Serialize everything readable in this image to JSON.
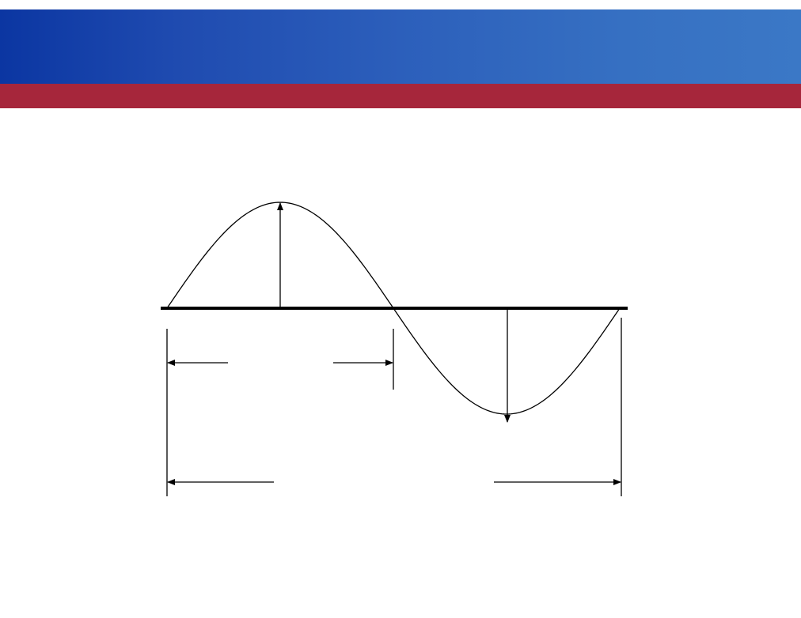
{
  "slide": {
    "header_color_start": "#0b36a2",
    "header_color_end": "#3b78c6",
    "accent_color": "#a6263b"
  },
  "diagram": {
    "type": "sine-wave-annotation",
    "stroke_color": "#000000",
    "cycles": 1,
    "annotations": [
      {
        "name": "positive-amplitude-arrow",
        "kind": "vertical-arrow-up"
      },
      {
        "name": "negative-amplitude-arrow",
        "kind": "vertical-arrow-down"
      },
      {
        "name": "half-period-dimension",
        "kind": "horizontal-dimension",
        "span_fraction": 0.5
      },
      {
        "name": "full-period-dimension",
        "kind": "horizontal-dimension",
        "span_fraction": 1.0
      }
    ]
  }
}
